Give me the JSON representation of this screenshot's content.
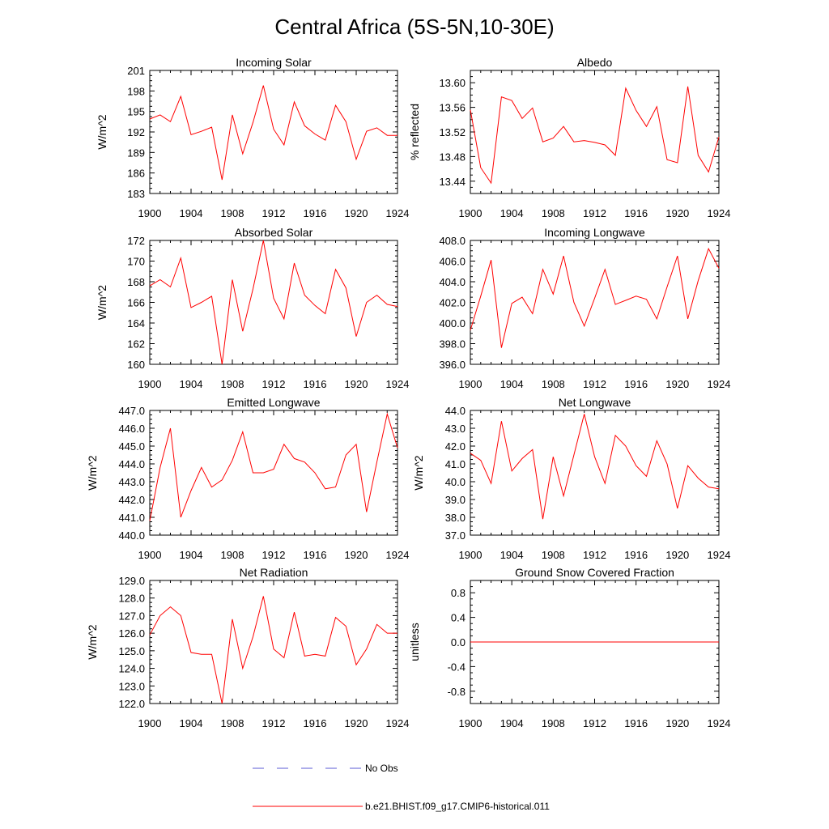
{
  "figure": {
    "title": "Central Africa (5S-5N,10-30E)"
  },
  "legend": {
    "items": [
      {
        "label": "No Obs",
        "style": "dashed",
        "color": "#5b5bd6"
      },
      {
        "label": "b.e21.BHIST.f09_g17.CMIP6-historical.011",
        "style": "solid",
        "color": "#ff0000"
      }
    ]
  },
  "chart_data": [
    {
      "type": "line",
      "title": "Incoming Solar",
      "xlabel": "",
      "ylabel": "W/m^2",
      "xlim": [
        1900,
        1924
      ],
      "ylim": [
        183,
        201
      ],
      "xticks": [
        1900,
        1904,
        1908,
        1912,
        1916,
        1920,
        1924
      ],
      "yticks": [
        183,
        186,
        189,
        192,
        195,
        198,
        201
      ],
      "ytick_labels": [
        "183",
        "186",
        "189",
        "192",
        "195",
        "198",
        "201"
      ],
      "x": [
        1900,
        1901,
        1902,
        1903,
        1904,
        1905,
        1906,
        1907,
        1908,
        1909,
        1910,
        1911,
        1912,
        1913,
        1914,
        1915,
        1916,
        1917,
        1918,
        1919,
        1920,
        1921,
        1922,
        1923,
        1924
      ],
      "series": [
        {
          "name": "b.e21.BHIST.f09_g17.CMIP6-historical.011",
          "color": "#ff0000",
          "values": [
            193.9,
            194.5,
            193.5,
            197.2,
            191.6,
            192.1,
            192.7,
            185.0,
            194.5,
            188.8,
            193.4,
            198.8,
            192.4,
            190.1,
            196.4,
            192.9,
            191.7,
            190.8,
            195.9,
            193.5,
            188.0,
            192.1,
            192.6,
            191.5,
            191.5
          ]
        }
      ]
    },
    {
      "type": "line",
      "title": "Albedo",
      "xlabel": "",
      "ylabel": "% reflected",
      "xlim": [
        1900,
        1924
      ],
      "ylim": [
        13.42,
        13.62
      ],
      "xticks": [
        1900,
        1904,
        1908,
        1912,
        1916,
        1920,
        1924
      ],
      "yticks": [
        13.44,
        13.48,
        13.52,
        13.56,
        13.6
      ],
      "ytick_labels": [
        "13.44",
        "13.48",
        "13.52",
        "13.56",
        "13.60"
      ],
      "x": [
        1900,
        1901,
        1902,
        1903,
        1904,
        1905,
        1906,
        1907,
        1908,
        1909,
        1910,
        1911,
        1912,
        1913,
        1914,
        1915,
        1916,
        1917,
        1918,
        1919,
        1920,
        1921,
        1922,
        1923,
        1924
      ],
      "series": [
        {
          "name": "b.e21.BHIST.f09_g17.CMIP6-historical.011",
          "color": "#ff0000",
          "values": [
            13.556,
            13.462,
            13.437,
            13.577,
            13.571,
            13.542,
            13.559,
            13.504,
            13.51,
            13.529,
            13.504,
            13.506,
            13.503,
            13.499,
            13.482,
            13.591,
            13.555,
            13.529,
            13.561,
            13.475,
            13.47,
            13.594,
            13.482,
            13.455,
            13.512
          ]
        }
      ]
    },
    {
      "type": "line",
      "title": "Absorbed Solar",
      "xlabel": "",
      "ylabel": "W/m^2",
      "xlim": [
        1900,
        1924
      ],
      "ylim": [
        160,
        172
      ],
      "xticks": [
        1900,
        1904,
        1908,
        1912,
        1916,
        1920,
        1924
      ],
      "yticks": [
        160,
        162,
        164,
        166,
        168,
        170,
        172
      ],
      "ytick_labels": [
        "160",
        "162",
        "164",
        "166",
        "168",
        "170",
        "172"
      ],
      "x": [
        1900,
        1901,
        1902,
        1903,
        1904,
        1905,
        1906,
        1907,
        1908,
        1909,
        1910,
        1911,
        1912,
        1913,
        1914,
        1915,
        1916,
        1917,
        1918,
        1919,
        1920,
        1921,
        1922,
        1923,
        1924
      ],
      "series": [
        {
          "name": "b.e21.BHIST.f09_g17.CMIP6-historical.011",
          "color": "#ff0000",
          "values": [
            167.6,
            168.2,
            167.5,
            170.3,
            165.5,
            166.0,
            166.6,
            160.0,
            168.2,
            163.2,
            167.3,
            172.0,
            166.4,
            164.4,
            169.8,
            166.7,
            165.7,
            164.9,
            169.2,
            167.4,
            162.7,
            166.0,
            166.7,
            165.8,
            165.6
          ]
        }
      ]
    },
    {
      "type": "line",
      "title": "Incoming Longwave",
      "xlabel": "",
      "ylabel": "",
      "xlim": [
        1900,
        1924
      ],
      "ylim": [
        396.0,
        408.0
      ],
      "xticks": [
        1900,
        1904,
        1908,
        1912,
        1916,
        1920,
        1924
      ],
      "yticks": [
        396,
        398,
        400,
        402,
        404,
        406,
        408
      ],
      "ytick_labels": [
        "396.0",
        "398.0",
        "400.0",
        "402.0",
        "404.0",
        "406.0",
        "408.0"
      ],
      "x": [
        1900,
        1901,
        1902,
        1903,
        1904,
        1905,
        1906,
        1907,
        1908,
        1909,
        1910,
        1911,
        1912,
        1913,
        1914,
        1915,
        1916,
        1917,
        1918,
        1919,
        1920,
        1921,
        1922,
        1923,
        1924
      ],
      "series": [
        {
          "name": "b.e21.BHIST.f09_g17.CMIP6-historical.011",
          "color": "#ff0000",
          "values": [
            399.3,
            402.6,
            406.1,
            397.6,
            401.9,
            402.5,
            400.9,
            405.2,
            402.8,
            406.5,
            402.0,
            399.7,
            402.4,
            405.2,
            401.8,
            402.2,
            402.6,
            402.3,
            400.4,
            403.5,
            406.5,
            400.4,
            404.1,
            407.2,
            405.3
          ]
        }
      ]
    },
    {
      "type": "line",
      "title": "Emitted Longwave",
      "xlabel": "",
      "ylabel": "W/m^2",
      "xlim": [
        1900,
        1924
      ],
      "ylim": [
        440.0,
        447.0
      ],
      "xticks": [
        1900,
        1904,
        1908,
        1912,
        1916,
        1920,
        1924
      ],
      "yticks": [
        440,
        441,
        442,
        443,
        444,
        445,
        446,
        447
      ],
      "ytick_labels": [
        "440.0",
        "441.0",
        "442.0",
        "443.0",
        "444.0",
        "445.0",
        "446.0",
        "447.0"
      ],
      "x": [
        1900,
        1901,
        1902,
        1903,
        1904,
        1905,
        1906,
        1907,
        1908,
        1909,
        1910,
        1911,
        1912,
        1913,
        1914,
        1915,
        1916,
        1917,
        1918,
        1919,
        1920,
        1921,
        1922,
        1923,
        1924
      ],
      "series": [
        {
          "name": "b.e21.BHIST.f09_g17.CMIP6-historical.011",
          "color": "#ff0000",
          "values": [
            440.8,
            443.8,
            446.0,
            441.0,
            442.5,
            443.8,
            442.7,
            443.1,
            444.2,
            445.8,
            443.5,
            443.5,
            443.7,
            445.1,
            444.3,
            444.1,
            443.5,
            442.6,
            442.7,
            444.5,
            445.1,
            441.3,
            444.1,
            446.8,
            444.9
          ]
        }
      ]
    },
    {
      "type": "line",
      "title": "Net Longwave",
      "xlabel": "",
      "ylabel": "W/m^2",
      "xlim": [
        1900,
        1924
      ],
      "ylim": [
        37.0,
        44.0
      ],
      "xticks": [
        1900,
        1904,
        1908,
        1912,
        1916,
        1920,
        1924
      ],
      "yticks": [
        37,
        38,
        39,
        40,
        41,
        42,
        43,
        44
      ],
      "ytick_labels": [
        "37.0",
        "38.0",
        "39.0",
        "40.0",
        "41.0",
        "42.0",
        "43.0",
        "44.0"
      ],
      "x": [
        1900,
        1901,
        1902,
        1903,
        1904,
        1905,
        1906,
        1907,
        1908,
        1909,
        1910,
        1911,
        1912,
        1913,
        1914,
        1915,
        1916,
        1917,
        1918,
        1919,
        1920,
        1921,
        1922,
        1923,
        1924
      ],
      "series": [
        {
          "name": "b.e21.BHIST.f09_g17.CMIP6-historical.011",
          "color": "#ff0000",
          "values": [
            41.6,
            41.2,
            39.9,
            43.4,
            40.6,
            41.3,
            41.8,
            37.9,
            41.4,
            39.2,
            41.5,
            43.8,
            41.4,
            39.9,
            42.6,
            42.0,
            40.9,
            40.3,
            42.3,
            41.0,
            38.5,
            40.9,
            40.2,
            39.7,
            39.6
          ]
        }
      ]
    },
    {
      "type": "line",
      "title": "Net Radiation",
      "xlabel": "",
      "ylabel": "W/m^2",
      "xlim": [
        1900,
        1924
      ],
      "ylim": [
        122.0,
        129.0
      ],
      "xticks": [
        1900,
        1904,
        1908,
        1912,
        1916,
        1920,
        1924
      ],
      "yticks": [
        122,
        123,
        124,
        125,
        126,
        127,
        128,
        129
      ],
      "ytick_labels": [
        "122.0",
        "123.0",
        "124.0",
        "125.0",
        "126.0",
        "127.0",
        "128.0",
        "129.0"
      ],
      "x": [
        1900,
        1901,
        1902,
        1903,
        1904,
        1905,
        1906,
        1907,
        1908,
        1909,
        1910,
        1911,
        1912,
        1913,
        1914,
        1915,
        1916,
        1917,
        1918,
        1919,
        1920,
        1921,
        1922,
        1923,
        1924
      ],
      "series": [
        {
          "name": "b.e21.BHIST.f09_g17.CMIP6-historical.011",
          "color": "#ff0000",
          "values": [
            125.9,
            127.0,
            127.5,
            127.0,
            124.9,
            124.8,
            124.8,
            122.0,
            126.8,
            124.0,
            125.8,
            128.1,
            125.1,
            124.6,
            127.2,
            124.7,
            124.8,
            124.7,
            126.9,
            126.4,
            124.2,
            125.1,
            126.5,
            126.0,
            126.0
          ]
        }
      ]
    },
    {
      "type": "line",
      "title": "Ground Snow Covered Fraction",
      "xlabel": "",
      "ylabel": "unitless",
      "xlim": [
        1900,
        1924
      ],
      "ylim": [
        -1.0,
        1.0
      ],
      "xticks": [
        1900,
        1904,
        1908,
        1912,
        1916,
        1920,
        1924
      ],
      "yticks": [
        -0.8,
        -0.4,
        0.0,
        0.4,
        0.8
      ],
      "ytick_labels": [
        "-0.8",
        "-0.4",
        "0.0",
        "0.4",
        "0.8"
      ],
      "x": [
        1900,
        1901,
        1902,
        1903,
        1904,
        1905,
        1906,
        1907,
        1908,
        1909,
        1910,
        1911,
        1912,
        1913,
        1914,
        1915,
        1916,
        1917,
        1918,
        1919,
        1920,
        1921,
        1922,
        1923,
        1924
      ],
      "series": [
        {
          "name": "b.e21.BHIST.f09_g17.CMIP6-historical.011",
          "color": "#ff0000",
          "values": [
            0,
            0,
            0,
            0,
            0,
            0,
            0,
            0,
            0,
            0,
            0,
            0,
            0,
            0,
            0,
            0,
            0,
            0,
            0,
            0,
            0,
            0,
            0,
            0,
            0
          ]
        }
      ]
    }
  ]
}
